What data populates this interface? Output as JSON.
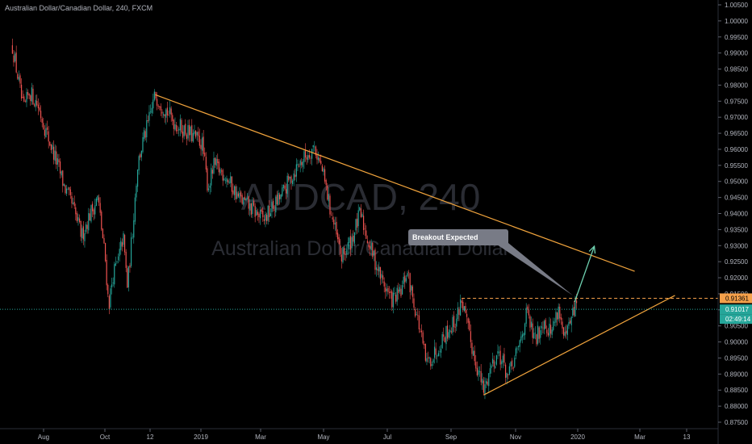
{
  "header": {
    "title": "Australian Dollar/Canadian Dollar, 240, FXCM"
  },
  "watermark": {
    "symbol": "AUDCAD, 240",
    "name": "Australian Dollar/Canadian Dollar"
  },
  "annotation": {
    "label": "Breakout Expected"
  },
  "colors": {
    "background": "#000000",
    "up": "#26a69a",
    "down": "#ef5350",
    "trendline": "#f0a33c",
    "arrow": "#6fd1b0",
    "callout": "#787b86",
    "current_price_line": "#26a69a"
  },
  "price_axis": {
    "ticks": [
      "1.00500",
      "1.00000",
      "0.99500",
      "0.99000",
      "0.98500",
      "0.98000",
      "0.97500",
      "0.97000",
      "0.96500",
      "0.96000",
      "0.95500",
      "0.95000",
      "0.94500",
      "0.94000",
      "0.93500",
      "0.93000",
      "0.92500",
      "0.92000",
      "0.91500",
      "0.91000",
      "0.90500",
      "0.90000",
      "0.89500",
      "0.89000",
      "0.88500",
      "0.88000",
      "0.87500"
    ],
    "labels": [
      {
        "text": "0.91361",
        "kind": "level"
      },
      {
        "text": "0.91017",
        "kind": "current"
      },
      {
        "text": "02:49:14",
        "kind": "countdown"
      }
    ]
  },
  "time_axis": {
    "ticks": [
      "Aug",
      "Oct",
      "12",
      "2019",
      "Mar",
      "May",
      "Jul",
      "Sep",
      "Nov",
      "2020",
      "Mar",
      "13"
    ]
  },
  "chart_data": {
    "type": "candlestick",
    "title": "Australian Dollar/Canadian Dollar, 240, FXCM",
    "ylim": [
      0.873,
      1.0065
    ],
    "grid": false,
    "levels": {
      "resistance_dashed": 0.91361,
      "current_price": 0.91017
    },
    "path": [
      [
        "Jul 1 2018",
        0.992
      ],
      [
        "Jul 5 2018",
        0.985
      ],
      [
        "Jul 12 2018",
        0.972
      ],
      [
        "Jul 18 2018",
        0.978
      ],
      [
        "Jul 26 2018",
        0.974
      ],
      [
        "Aug 3 2018",
        0.966
      ],
      [
        "Aug 14 2018",
        0.956
      ],
      [
        "Aug 22 2018",
        0.948
      ],
      [
        "Aug 30 2018",
        0.942
      ],
      [
        "Sep 8 2018",
        0.933
      ],
      [
        "Sep 15 2018",
        0.939
      ],
      [
        "Sep 24 2018",
        0.945
      ],
      [
        "Oct 2 2018",
        0.925
      ],
      [
        "Oct 7 2018",
        0.911
      ],
      [
        "Oct 14 2018",
        0.921
      ],
      [
        "Oct 22 2018",
        0.925
      ],
      [
        "Oct 30 2018",
        0.933
      ],
      [
        "Nov 6 2018",
        0.917
      ],
      [
        "Nov 14 2018",
        0.935
      ],
      [
        "Nov 22 2018",
        0.955
      ],
      [
        "Nov 30 2018",
        0.962
      ],
      [
        "Dec 9 2018",
        0.968
      ],
      [
        "Dec 14 2018",
        0.977
      ],
      [
        "Dec 22 2018",
        0.968
      ],
      [
        "Jan 2 2019",
        0.962
      ],
      [
        "Jan 8 2019",
        0.948
      ],
      [
        "Jan 14 2019",
        0.955
      ],
      [
        "Jan 25 2019",
        0.952
      ],
      [
        "Feb 7 2019",
        0.945
      ],
      [
        "Feb 18 2019",
        0.942
      ],
      [
        "Mar 4 2019",
        0.938
      ],
      [
        "Mar 20 2019",
        0.945
      ],
      [
        "Apr 6 2019",
        0.955
      ],
      [
        "Apr 22 2019",
        0.961
      ],
      [
        "Apr 30 2019",
        0.953
      ],
      [
        "May 7 2019",
        0.942
      ],
      [
        "May 18 2019",
        0.926
      ],
      [
        "May 28 2019",
        0.932
      ],
      [
        "Jun 5 2019",
        0.94
      ],
      [
        "Jun 14 2019",
        0.93
      ],
      [
        "Jun 25 2019",
        0.92
      ],
      [
        "Jul 5 2019",
        0.913
      ],
      [
        "Jul 14 2019",
        0.915
      ],
      [
        "Jul 20 2019",
        0.922
      ],
      [
        "Aug 1 2019",
        0.905
      ],
      [
        "Aug 8 2019",
        0.893
      ],
      [
        "Aug 15 2019",
        0.896
      ],
      [
        "Aug 25 2019",
        0.902
      ],
      [
        "Sep 6 2019",
        0.907
      ],
      [
        "Sep 11 2019",
        0.9135
      ],
      [
        "Sep 18 2019",
        0.902
      ],
      [
        "Sep 25 2019",
        0.893
      ],
      [
        "Oct 2 2019",
        0.8845
      ],
      [
        "Oct 9 2019",
        0.893
      ],
      [
        "Oct 16 2019",
        0.897
      ],
      [
        "Oct 25 2019",
        0.889
      ],
      [
        "Nov 3 2019",
        0.897
      ],
      [
        "Nov 12 2019",
        0.909
      ],
      [
        "Nov 20 2019",
        0.9
      ],
      [
        "Nov 28 2019",
        0.907
      ],
      [
        "Dec 6 2019",
        0.903
      ],
      [
        "Dec 13 2019",
        0.911
      ],
      [
        "Dec 19 2019",
        0.9
      ],
      [
        "Dec 25 2019",
        0.906
      ],
      [
        "Dec 31 2019",
        0.913
      ]
    ],
    "trendlines": [
      {
        "name": "descending resistance",
        "from": [
          "Dec 14 2018",
          0.977
        ],
        "to": [
          "Feb 25 2020",
          0.922
        ]
      },
      {
        "name": "ascending support",
        "from": [
          "Oct 2 2019",
          0.8835
        ],
        "to": [
          "Mar 10 2020",
          0.9145
        ]
      }
    ],
    "projection_arrow": {
      "from": [
        "Dec 29 2019",
        0.9125
      ],
      "to": [
        "Jan 17 2020",
        0.9298
      ]
    }
  }
}
